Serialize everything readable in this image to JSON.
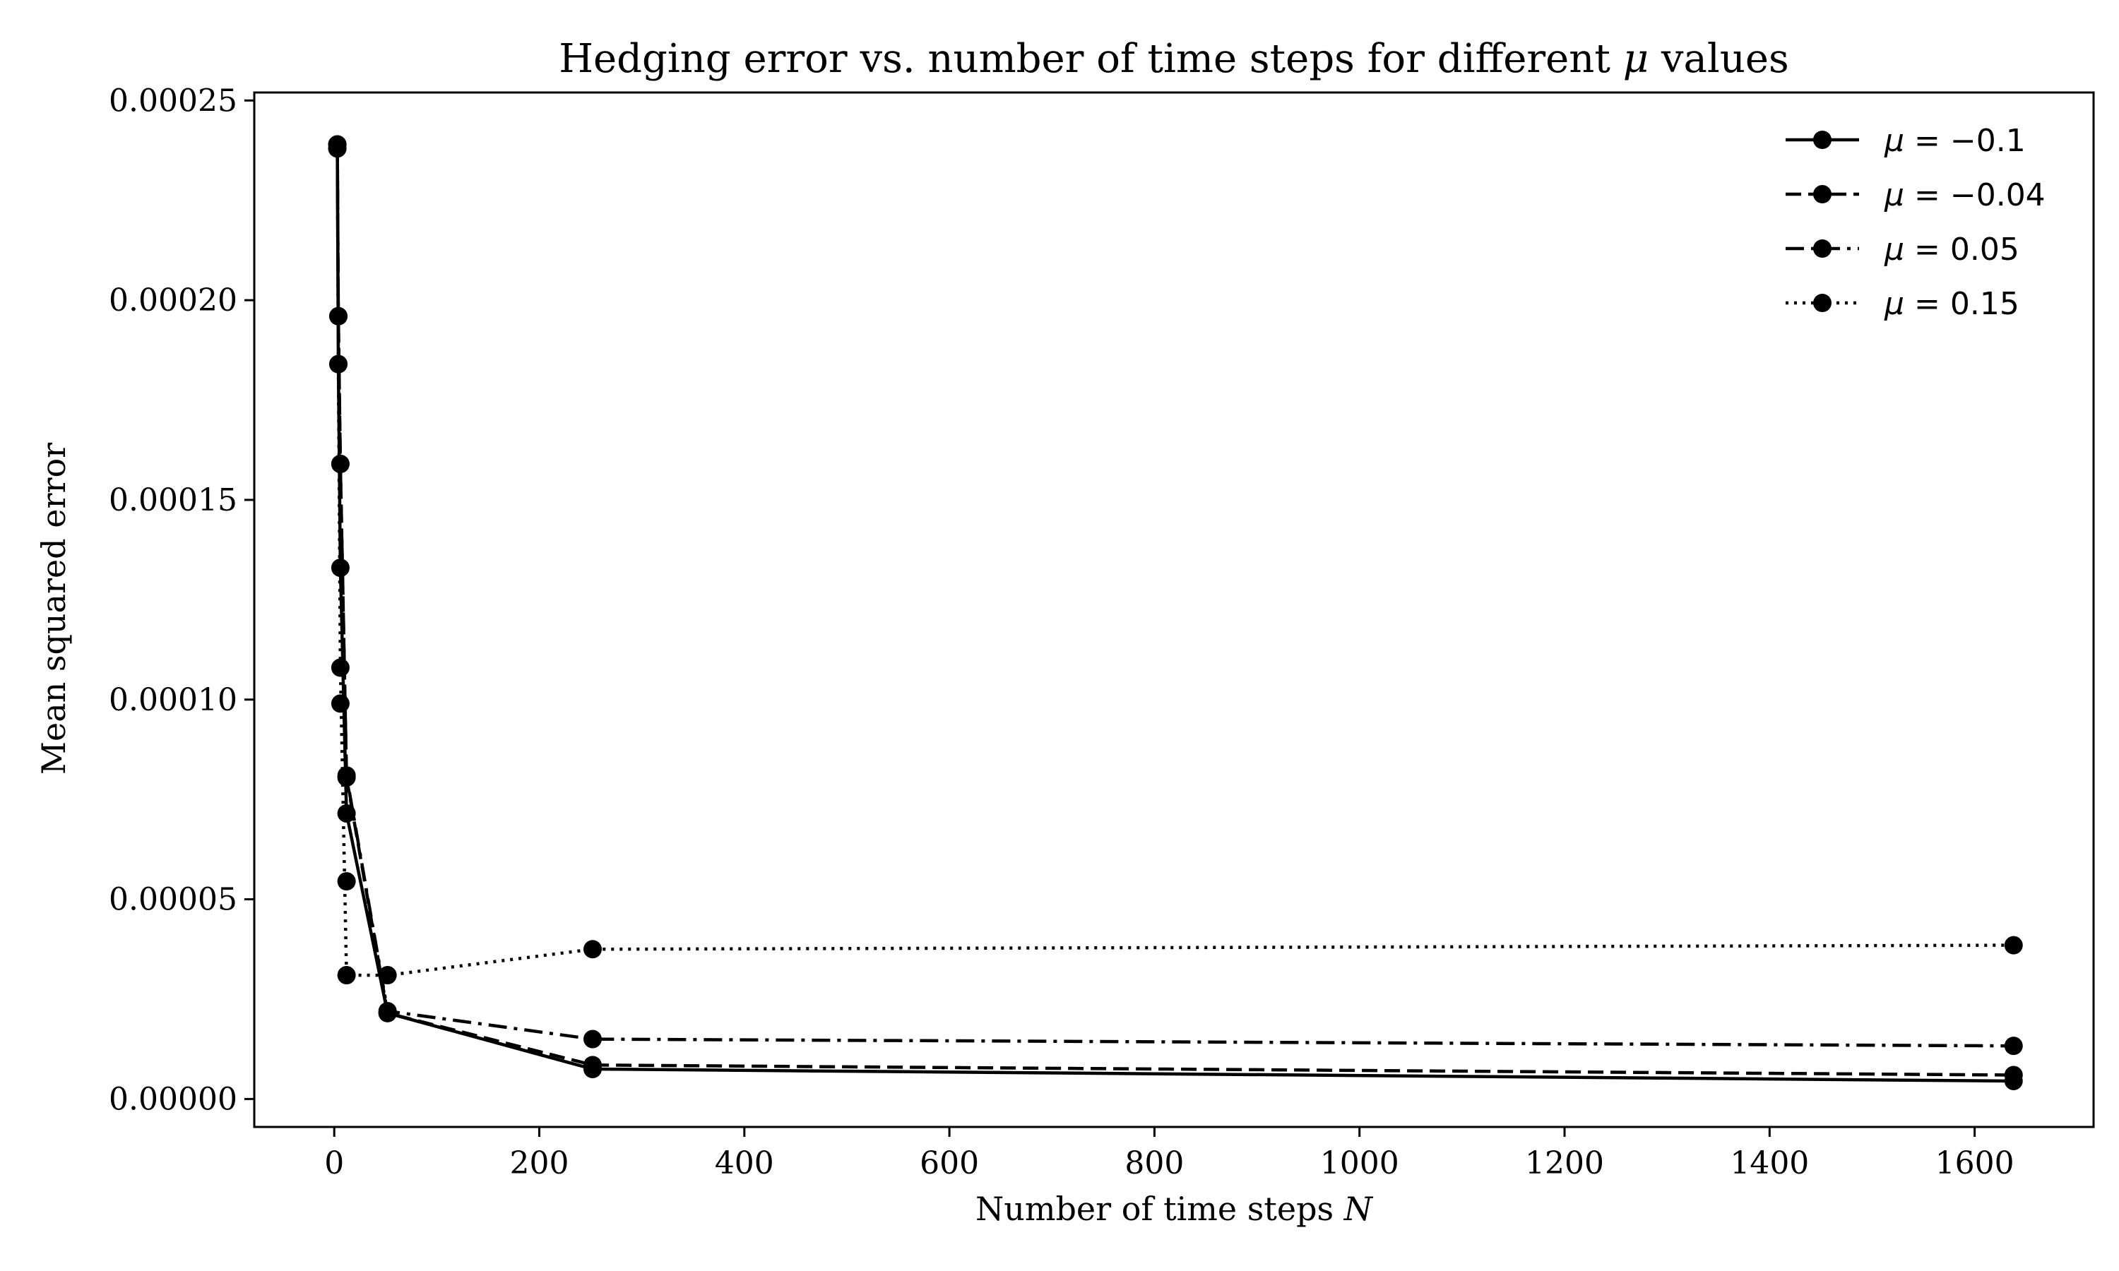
{
  "chart_data": {
    "type": "line",
    "title_prefix": "Hedging error vs. number of time steps for different ",
    "title_symbol": "μ",
    "title_suffix": " values",
    "xlabel_prefix": "Number of time steps ",
    "xlabel_symbol": "N",
    "ylabel": "Mean squared error",
    "xlim": [
      -78,
      1716
    ],
    "ylim": [
      -7e-06,
      0.000252
    ],
    "xticks": [
      0,
      200,
      400,
      600,
      800,
      1000,
      1200,
      1400,
      1600
    ],
    "xtick_labels": [
      "0",
      "200",
      "400",
      "600",
      "800",
      "1000",
      "1200",
      "1400",
      "1600"
    ],
    "yticks": [
      0,
      5e-05,
      0.0001,
      0.00015,
      0.0002,
      0.00025
    ],
    "ytick_labels": [
      "0.00000",
      "0.00005",
      "0.00010",
      "0.00015",
      "0.00020",
      "0.00025"
    ],
    "grid": false,
    "legend_position": "top-right",
    "series": [
      {
        "name": "μ = −0.1",
        "label_symbol": "μ",
        "label_rest": " = −0.1",
        "style": "solid",
        "x": [
          3,
          4,
          6,
          12,
          52,
          252,
          1638
        ],
        "y": [
          0.000238,
          0.000184,
          0.000133,
          7.15e-05,
          2.15e-05,
          7.5e-06,
          4.5e-06
        ]
      },
      {
        "name": "μ = −0.04",
        "label_symbol": "μ",
        "label_rest": " = −0.04",
        "style": "dashed",
        "x": [
          3,
          4,
          6,
          12,
          52,
          252,
          1638
        ],
        "y": [
          0.000239,
          0.000196,
          0.000159,
          8.05e-05,
          2.15e-05,
          8.5e-06,
          6e-06
        ]
      },
      {
        "name": "μ = 0.05",
        "label_symbol": "μ",
        "label_rest": " = 0.05",
        "style": "dashdot",
        "x": [
          3,
          4,
          6,
          12,
          52,
          252,
          1638
        ],
        "y": [
          0.000239,
          0.000196,
          0.000159,
          8.1e-05,
          2.2e-05,
          1.5e-05,
          1.33e-05
        ]
      },
      {
        "name": "μ = 0.15",
        "label_symbol": "μ",
        "label_rest": " = 0.15",
        "style": "dotted",
        "x": [
          3,
          4,
          6,
          12,
          52,
          252,
          1638
        ],
        "y": [
          0.000238,
          0.000184,
          0.000108,
          3.1e-05,
          3.1e-05,
          3.75e-05,
          3.85e-05
        ]
      }
    ],
    "extra_markers": {
      "note": "",
      "x": [
        6,
        12
      ],
      "y": [
        9.9e-05,
        5.45e-05
      ]
    }
  }
}
